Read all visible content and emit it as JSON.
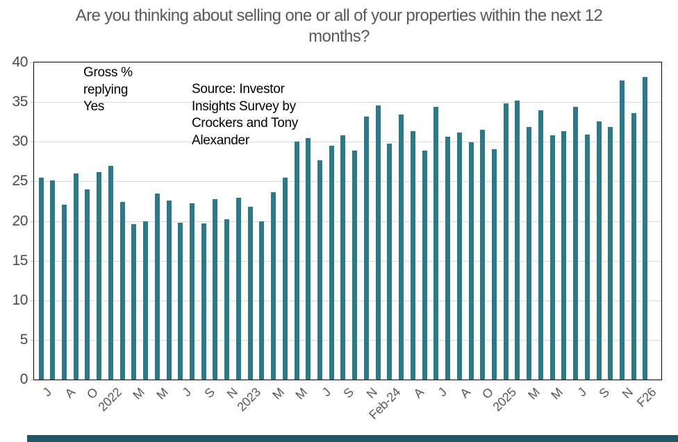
{
  "chart_data": {
    "type": "bar",
    "title": "Are you thinking about selling one or all of your properties within the next 12 months?",
    "annotations": {
      "gross_note": "Gross %\nreplying\nYes",
      "source_note": "Source: Investor\nInsights Survey by\nCrockers and Tony\nAlexander"
    },
    "ylabel": "Gross % replying Yes",
    "ylim": [
      0,
      40
    ],
    "y_ticks": [
      0,
      5,
      10,
      15,
      20,
      25,
      30,
      35,
      40
    ],
    "grid": "horizontal",
    "legend": "none",
    "bar_color": "#2b7a8c",
    "x_tick_labels": [
      "J",
      "A",
      "O",
      "2022",
      "M",
      "M",
      "J",
      "S",
      "N",
      "2023",
      "M",
      "M",
      "J",
      "S",
      "N",
      "Feb-24",
      "A",
      "J",
      "A",
      "O",
      "2025",
      "M",
      "M",
      "J",
      "S",
      "N",
      "F26"
    ],
    "x_tick_every_n_bars": 2,
    "values": [
      25.5,
      25.1,
      22.1,
      26.0,
      24.0,
      26.2,
      27.0,
      22.4,
      19.6,
      20.0,
      23.5,
      22.6,
      19.8,
      22.2,
      19.7,
      22.8,
      20.2,
      22.9,
      21.8,
      20.0,
      23.6,
      25.5,
      30.0,
      30.5,
      27.7,
      29.5,
      30.8,
      28.9,
      33.2,
      34.6,
      29.8,
      33.4,
      31.3,
      28.9,
      34.4,
      30.6,
      31.2,
      29.9,
      31.5,
      29.1,
      34.8,
      35.2,
      31.9,
      34.0,
      30.8,
      31.3,
      34.4,
      30.9,
      32.6,
      31.9,
      37.7,
      33.6,
      38.2
    ]
  },
  "colors": {
    "bar": "#2b7a8c",
    "title_text": "#595959",
    "axis_text": "#4a4a4a",
    "gridline": "#d9d9d9",
    "plot_border": "#000000",
    "footer_strip": "#205565"
  }
}
